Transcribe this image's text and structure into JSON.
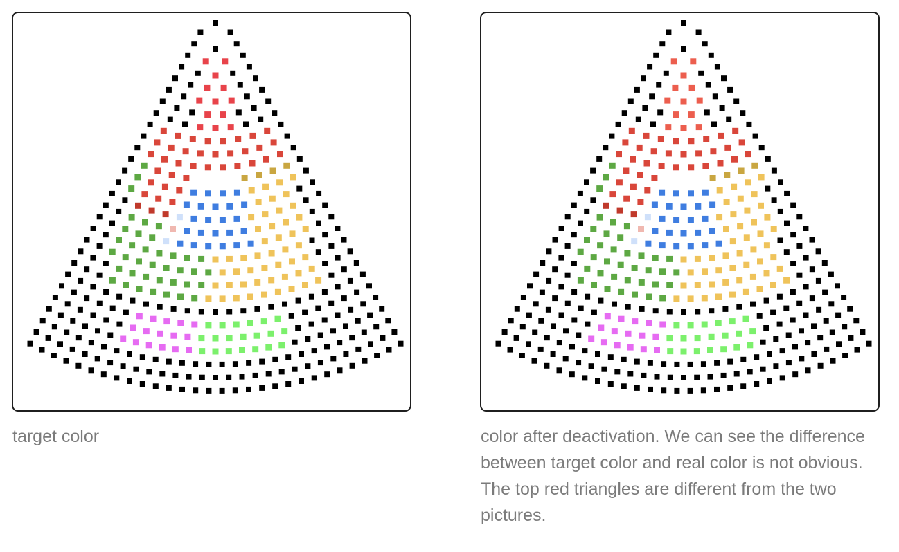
{
  "figures": [
    {
      "id": "target",
      "caption": "target color",
      "palette": {
        "black": "#000000",
        "red_top": "#e8434a",
        "red_mid": "#d9463a",
        "red_dark": "#c0392b",
        "blue": "#3f7de0",
        "blue_light": "#cfe0fa",
        "gold": "#efc35a",
        "gold_dark": "#c9a641",
        "green": "#5da843",
        "lime": "#7cf06c",
        "magenta": "#e66bf2",
        "pink": "#f0b8b0"
      }
    },
    {
      "id": "after-deactivation",
      "caption": "color after deactivation. We can see the difference between target color and real color is not obvious. The top red triangles are different from the two pictures.",
      "palette": {
        "black": "#000000",
        "red_top": "#ec5e4e",
        "red_mid": "#d9463a",
        "red_dark": "#c0392b",
        "blue": "#3f7de0",
        "blue_light": "#cfe0fa",
        "gold": "#efc35a",
        "gold_dark": "#c9a641",
        "green": "#5da843",
        "lime": "#7cf06c",
        "magenta": "#e66bf2",
        "pink": "#f0b8b0"
      }
    }
  ]
}
